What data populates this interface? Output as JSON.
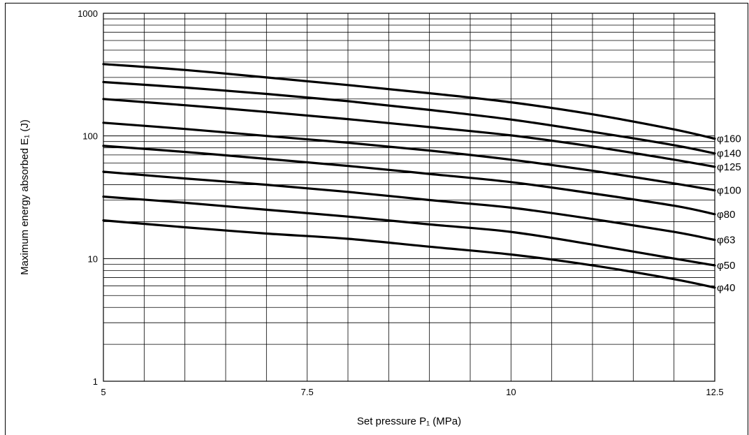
{
  "chart_data": {
    "type": "line",
    "xlabel": "Set pressure P₁ (MPa)",
    "ylabel": "Maximum energy absorbed E₁ (J)",
    "xlim": [
      5,
      12.5
    ],
    "ylim": [
      1,
      1000
    ],
    "yscale": "log",
    "grid": true,
    "x_ticks": [
      5,
      7.5,
      10,
      12.5
    ],
    "x_tick_labels": [
      "5",
      "7.5",
      "10",
      "12.5"
    ],
    "y_ticks": [
      1,
      10,
      100,
      1000
    ],
    "y_tick_labels": [
      "1",
      "10",
      "100",
      "1000"
    ],
    "x": [
      5,
      6,
      7,
      8,
      9,
      10,
      11,
      12,
      12.5
    ],
    "series": [
      {
        "name": "φ160",
        "values": [
          385,
          345,
          300,
          260,
          223,
          188,
          150,
          113,
          95
        ]
      },
      {
        "name": "φ140",
        "values": [
          275,
          248,
          220,
          192,
          163,
          136,
          108,
          84,
          72
        ]
      },
      {
        "name": "φ125",
        "values": [
          200,
          178,
          157,
          137,
          118,
          101,
          82,
          64,
          56
        ]
      },
      {
        "name": "φ100",
        "values": [
          128,
          114,
          100,
          88,
          76,
          64,
          52,
          41,
          36
        ]
      },
      {
        "name": "φ80",
        "values": [
          83,
          74,
          65,
          57,
          49,
          42,
          34,
          27,
          23
        ]
      },
      {
        "name": "φ63",
        "values": [
          51,
          45,
          40,
          35,
          30,
          26,
          21,
          16.5,
          14.2
        ]
      },
      {
        "name": "φ50",
        "values": [
          32,
          28.5,
          25,
          22,
          19,
          16.5,
          13,
          10,
          8.8
        ]
      },
      {
        "name": "φ40",
        "values": [
          20.5,
          18,
          16,
          14.5,
          12.5,
          10.8,
          8.8,
          6.8,
          5.8
        ]
      }
    ]
  }
}
